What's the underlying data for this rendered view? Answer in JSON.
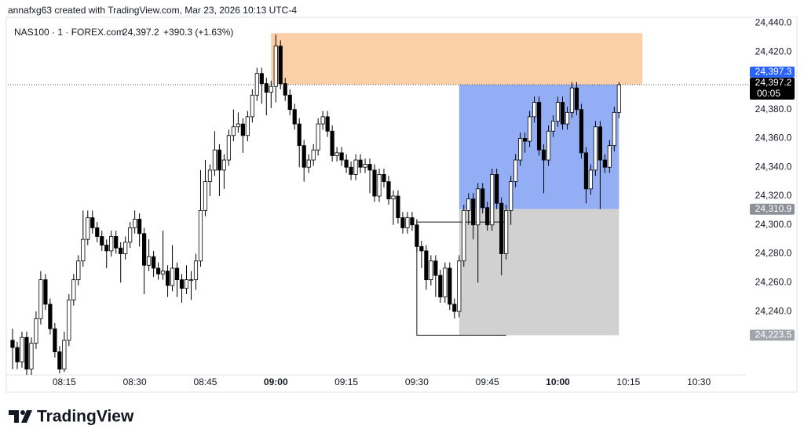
{
  "header": {
    "text": "annafxg63 created with TradingView.com, Mar 23, 2026 10:13 UTC-4"
  },
  "legend": {
    "symbol": "NAS100 · 1 · FOREX.com",
    "last": "24,397.2",
    "change": "+390.3 (+1.63%)"
  },
  "footer": {
    "brand": "TradingView"
  },
  "chart_data": {
    "type": "candlestick",
    "xlim": [
      "08:03",
      "10:40"
    ],
    "ylim": [
      24196,
      24444
    ],
    "grid": false,
    "up_color": "#ffffff",
    "down_color": "#000000",
    "outline_color": "#000000",
    "xticks": [
      "08:15",
      "08:30",
      "08:45",
      "09:00",
      "09:15",
      "09:30",
      "09:45",
      "10:00",
      "10:15",
      "10:30"
    ],
    "yticks": [
      {
        "value": 24440,
        "label": "24,440.0"
      },
      {
        "value": 24420,
        "label": "24,420.0"
      },
      {
        "value": 24380,
        "label": "24,380.0"
      },
      {
        "value": 24360,
        "label": "24,360.0"
      },
      {
        "value": 24340,
        "label": "24,340.0"
      },
      {
        "value": 24320,
        "label": "24,320.0"
      },
      {
        "value": 24300,
        "label": "24,300.0"
      },
      {
        "value": 24280,
        "label": "24,280.0"
      },
      {
        "value": 24260,
        "label": "24,260.0"
      },
      {
        "value": 24240,
        "label": "24,240.0"
      }
    ],
    "x": [
      "08:04",
      "08:05",
      "08:06",
      "08:07",
      "08:08",
      "08:09",
      "08:10",
      "08:11",
      "08:12",
      "08:13",
      "08:14",
      "08:15",
      "08:16",
      "08:17",
      "08:18",
      "08:19",
      "08:20",
      "08:21",
      "08:22",
      "08:23",
      "08:24",
      "08:25",
      "08:26",
      "08:27",
      "08:28",
      "08:29",
      "08:30",
      "08:31",
      "08:32",
      "08:33",
      "08:34",
      "08:35",
      "08:36",
      "08:37",
      "08:38",
      "08:39",
      "08:40",
      "08:41",
      "08:42",
      "08:43",
      "08:44",
      "08:45",
      "08:46",
      "08:47",
      "08:48",
      "08:49",
      "08:50",
      "08:51",
      "08:52",
      "08:53",
      "08:54",
      "08:55",
      "08:56",
      "08:57",
      "08:58",
      "08:59",
      "09:00",
      "09:01",
      "09:02",
      "09:03",
      "09:04",
      "09:05",
      "09:06",
      "09:07",
      "09:08",
      "09:09",
      "09:10",
      "09:11",
      "09:12",
      "09:13",
      "09:14",
      "09:15",
      "09:16",
      "09:17",
      "09:18",
      "09:19",
      "09:20",
      "09:21",
      "09:22",
      "09:23",
      "09:24",
      "09:25",
      "09:26",
      "09:27",
      "09:28",
      "09:29",
      "09:30",
      "09:31",
      "09:32",
      "09:33",
      "09:34",
      "09:35",
      "09:36",
      "09:37",
      "09:38",
      "09:39",
      "09:40",
      "09:41",
      "09:42",
      "09:43",
      "09:44",
      "09:45",
      "09:46",
      "09:47",
      "09:48",
      "09:49",
      "09:50",
      "09:51",
      "09:52",
      "09:53",
      "09:54",
      "09:55",
      "09:56",
      "09:57",
      "09:58",
      "09:59",
      "10:00",
      "10:01",
      "10:02",
      "10:03",
      "10:04",
      "10:05",
      "10:06",
      "10:07",
      "10:08",
      "10:09",
      "10:10",
      "10:11",
      "10:12",
      "10:13"
    ],
    "open": [
      24220,
      24215,
      24205,
      24222,
      24200,
      24218,
      24235,
      24262,
      24245,
      24228,
      24212,
      24200,
      24220,
      24248,
      24262,
      24275,
      24290,
      24305,
      24298,
      24292,
      24286,
      24282,
      24292,
      24284,
      24280,
      24288,
      24298,
      24304,
      24294,
      24272,
      24278,
      24270,
      24266,
      24268,
      24258,
      24270,
      24262,
      24256,
      24262,
      24262,
      24275,
      24310,
      24330,
      24338,
      24352,
      24338,
      24345,
      24362,
      24368,
      24370,
      24362,
      24375,
      24390,
      24405,
      24398,
      24392,
      24396,
      24424,
      24398,
      24390,
      24380,
      24370,
      24355,
      24340,
      24345,
      24352,
      24370,
      24375,
      24365,
      24348,
      24350,
      24345,
      24340,
      24335,
      24345,
      24340,
      24342,
      24338,
      24320,
      24335,
      24330,
      24318,
      24320,
      24305,
      24298,
      24305,
      24300,
      24285,
      24282,
      24262,
      24275,
      24265,
      24250,
      24270,
      24245,
      24240,
      24275,
      24310,
      24318,
      24300,
      24325,
      24312,
      24300,
      24335,
      24315,
      24280,
      24310,
      24330,
      24345,
      24360,
      24358,
      24375,
      24385,
      24352,
      24345,
      24365,
      24372,
      24385,
      24370,
      24378,
      24395,
      24380,
      24350,
      24325,
      24338,
      24368,
      24345,
      24340,
      24355,
      24378
    ],
    "high": [
      24228,
      24219,
      24226,
      24226,
      24222,
      24240,
      24268,
      24266,
      24249,
      24232,
      24216,
      24226,
      24252,
      24266,
      24279,
      24310,
      24310,
      24310,
      24302,
      24296,
      24290,
      24296,
      24296,
      24288,
      24292,
      24302,
      24310,
      24308,
      24298,
      24290,
      24282,
      24274,
      24296,
      24272,
      24286,
      24274,
      24266,
      24272,
      24268,
      24280,
      24338,
      24345,
      24342,
      24365,
      24356,
      24349,
      24366,
      24380,
      24378,
      24374,
      24379,
      24394,
      24409,
      24409,
      24402,
      24400,
      24432,
      24428,
      24402,
      24394,
      24384,
      24374,
      24359,
      24349,
      24356,
      24374,
      24379,
      24379,
      24369,
      24354,
      24354,
      24349,
      24344,
      24349,
      24349,
      24346,
      24346,
      24342,
      24339,
      24339,
      24334,
      24324,
      24324,
      24309,
      24309,
      24309,
      24304,
      24289,
      24286,
      24279,
      24279,
      24269,
      24274,
      24274,
      24249,
      24279,
      24314,
      24322,
      24322,
      24329,
      24329,
      24316,
      24339,
      24339,
      24319,
      24314,
      24334,
      24349,
      24364,
      24364,
      24379,
      24389,
      24389,
      24356,
      24369,
      24376,
      24389,
      24389,
      24382,
      24399,
      24399,
      24384,
      24354,
      24342,
      24372,
      24372,
      24349,
      24359,
      24382,
      24399
    ],
    "low": [
      24200,
      24200,
      24201,
      24196,
      24196,
      24214,
      24231,
      24241,
      24224,
      24208,
      24197,
      24198,
      24216,
      24244,
      24258,
      24271,
      24286,
      24294,
      24288,
      24282,
      24270,
      24278,
      24280,
      24260,
      24276,
      24284,
      24294,
      24285,
      24252,
      24268,
      24264,
      24262,
      24262,
      24250,
      24254,
      24250,
      24246,
      24252,
      24248,
      24255,
      24271,
      24306,
      24320,
      24334,
      24320,
      24325,
      24341,
      24358,
      24364,
      24350,
      24358,
      24371,
      24386,
      24384,
      24376,
      24381,
      24385,
      24394,
      24386,
      24376,
      24366,
      24340,
      24330,
      24336,
      24341,
      24348,
      24366,
      24361,
      24344,
      24344,
      24341,
      24336,
      24331,
      24331,
      24336,
      24336,
      24322,
      24316,
      24316,
      24326,
      24314,
      24300,
      24301,
      24294,
      24294,
      24296,
      24281,
      24270,
      24255,
      24258,
      24250,
      24246,
      24246,
      24241,
      24235,
      24236,
      24271,
      24300,
      24290,
      24260,
      24308,
      24296,
      24296,
      24311,
      24265,
      24276,
      24300,
      24326,
      24341,
      24350,
      24354,
      24371,
      24348,
      24322,
      24341,
      24361,
      24368,
      24366,
      24366,
      24374,
      24376,
      24346,
      24315,
      24321,
      24334,
      24311,
      24336,
      24336,
      24351,
      24374
    ],
    "close": [
      24215,
      24205,
      24222,
      24200,
      24218,
      24235,
      24262,
      24245,
      24228,
      24212,
      24200,
      24220,
      24248,
      24262,
      24275,
      24290,
      24305,
      24298,
      24292,
      24286,
      24282,
      24292,
      24284,
      24280,
      24288,
      24298,
      24304,
      24294,
      24272,
      24278,
      24270,
      24266,
      24268,
      24258,
      24270,
      24262,
      24256,
      24262,
      24262,
      24275,
      24310,
      24330,
      24338,
      24352,
      24338,
      24345,
      24362,
      24368,
      24370,
      24362,
      24375,
      24390,
      24405,
      24398,
      24392,
      24396,
      24424,
      24398,
      24390,
      24380,
      24370,
      24355,
      24340,
      24345,
      24352,
      24370,
      24375,
      24365,
      24348,
      24350,
      24345,
      24340,
      24335,
      24345,
      24340,
      24342,
      24338,
      24320,
      24335,
      24330,
      24318,
      24320,
      24305,
      24298,
      24305,
      24300,
      24285,
      24282,
      24262,
      24275,
      24265,
      24250,
      24270,
      24245,
      24240,
      24275,
      24310,
      24318,
      24300,
      24325,
      24312,
      24300,
      24335,
      24315,
      24280,
      24310,
      24330,
      24345,
      24360,
      24358,
      24375,
      24385,
      24352,
      24345,
      24365,
      24372,
      24385,
      24370,
      24378,
      24395,
      24380,
      24350,
      24325,
      24338,
      24368,
      24345,
      24340,
      24355,
      24378,
      24397.2
    ],
    "zones": [
      {
        "from": "08:59",
        "to": "10:18",
        "low": 24397.3,
        "high": 24433,
        "color": "#fbcfa8"
      },
      {
        "from": "09:39",
        "to": "10:13",
        "low": 24310.9,
        "high": 24397.3,
        "color": "#93aef5"
      },
      {
        "from": "09:39",
        "to": "10:13",
        "low": 24223.5,
        "high": 24310.9,
        "color": "#d1d1d1"
      }
    ],
    "outline_box": {
      "from": "09:30",
      "to": "09:49",
      "low": 24223.5,
      "high": 24302
    },
    "price_labels": [
      {
        "value": 24397.3,
        "label": "24,397.3",
        "color": "#2962ff"
      },
      {
        "value": 24397.2,
        "label": "24,397.2",
        "countdown": "00:05",
        "color": "#000000"
      },
      {
        "value": 24310.9,
        "label": "24,310.9",
        "color": "#8e9099"
      },
      {
        "value": 24223.5,
        "label": "24,223.5",
        "color": "#a3a5ad"
      }
    ]
  }
}
